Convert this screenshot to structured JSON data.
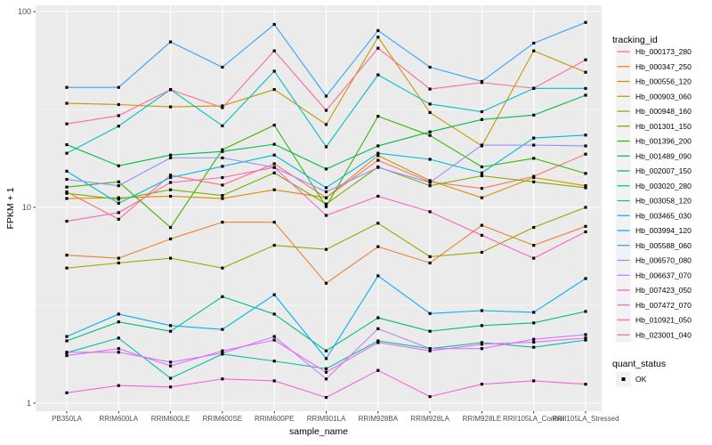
{
  "figure": {
    "background": "#FFFFFF",
    "panel_background": "#EBEBEB",
    "gridline_color": "#FFFFFF",
    "legend_key_background": "#F2F2F2",
    "axis_text_color": "#4D4D4D",
    "title_text_color": "#000000",
    "marker_color": "#000000"
  },
  "chart_data": {
    "type": "line",
    "title": "",
    "xlabel": "sample_name",
    "ylabel": "FPKM + 1",
    "y_scale": "log10",
    "ylim": [
      1,
      100
    ],
    "y_major_ticks": [
      1,
      10,
      100
    ],
    "y_tick_labels": [
      "1",
      "10",
      "100"
    ],
    "y_minor_ticks": [
      3.1623,
      31.623
    ],
    "grid": true,
    "legend_position": "right",
    "point_shape": "filled-square",
    "categories": [
      "PB350LA",
      "RRIM600LA",
      "RRIM600LE",
      "RRIM600SE",
      "RRIM600PE",
      "RRIM901LA",
      "RRIM928BA",
      "RRIM928LA",
      "RRIM928LE",
      "RRII105LA_Control",
      "RRII105LA_Stressed"
    ],
    "series": [
      {
        "name": "Hb_000173_280",
        "color": "#F8766D",
        "values": [
          12.0,
          8.7,
          14.6,
          13.0,
          16.7,
          11.2,
          17.4,
          13.5,
          12.5,
          14.4,
          18.7
        ]
      },
      {
        "name": "Hb_000347_250",
        "color": "#EA8331",
        "values": [
          5.7,
          5.5,
          6.9,
          8.4,
          8.4,
          4.1,
          6.3,
          5.2,
          8.1,
          6.4,
          8.0
        ]
      },
      {
        "name": "Hb_000556_120",
        "color": "#D89000",
        "values": [
          11.1,
          11.2,
          11.4,
          11.1,
          12.3,
          11.2,
          18.4,
          13.7,
          11.2,
          14.2,
          12.9
        ]
      },
      {
        "name": "Hb_000903_060",
        "color": "#C09B00",
        "values": [
          34.0,
          33.5,
          32.6,
          33.0,
          40.0,
          26.5,
          74.0,
          30.5,
          20.6,
          63.0,
          49.0
        ]
      },
      {
        "name": "Hb_000948_160",
        "color": "#A3A500",
        "values": [
          4.9,
          5.2,
          5.5,
          4.9,
          6.4,
          6.1,
          8.3,
          5.6,
          5.9,
          7.9,
          10.0
        ]
      },
      {
        "name": "Hb_001301_150",
        "color": "#7CAE00",
        "values": [
          11.8,
          11.0,
          12.3,
          11.5,
          15.0,
          10.4,
          16.1,
          12.9,
          14.5,
          13.5,
          12.6
        ]
      },
      {
        "name": "Hb_001396_200",
        "color": "#39B600",
        "values": [
          12.7,
          13.5,
          7.9,
          19.7,
          26.3,
          10.1,
          29.2,
          23.3,
          16.1,
          17.8,
          14.9
        ]
      },
      {
        "name": "Hb_001489_090",
        "color": "#00BB4E",
        "values": [
          20.9,
          16.3,
          18.5,
          19.3,
          21.0,
          15.7,
          20.6,
          24.3,
          28.1,
          29.6,
          37.4
        ]
      },
      {
        "name": "Hb_002007_150",
        "color": "#00BF7D",
        "values": [
          2.08,
          2.6,
          2.33,
          3.5,
          2.85,
          1.85,
          2.73,
          2.33,
          2.49,
          2.57,
          2.94
        ]
      },
      {
        "name": "Hb_003020_280",
        "color": "#00C1A3",
        "values": [
          1.81,
          2.15,
          1.34,
          1.78,
          1.64,
          1.5,
          2.08,
          1.9,
          2.04,
          1.93,
          2.1
        ]
      },
      {
        "name": "Hb_003058_120",
        "color": "#00BFC4",
        "values": [
          18.9,
          26.0,
          40.0,
          26.1,
          49.6,
          20.4,
          47.5,
          33.7,
          30.8,
          40.5,
          40.5
        ]
      },
      {
        "name": "Hb_003465_030",
        "color": "#00BAE0",
        "values": [
          15.3,
          10.5,
          14.2,
          16.2,
          18.5,
          12.6,
          18.9,
          17.6,
          15.0,
          22.6,
          23.4
        ]
      },
      {
        "name": "Hb_003994_120",
        "color": "#00B0F6",
        "values": [
          2.19,
          2.85,
          2.49,
          2.38,
          3.58,
          1.69,
          4.47,
          2.87,
          2.97,
          2.91,
          4.33
        ]
      },
      {
        "name": "Hb_005588_060",
        "color": "#35A2FF",
        "values": [
          41.0,
          41.0,
          70.0,
          52.0,
          86.0,
          37.0,
          80.0,
          52.0,
          44.0,
          69.0,
          88.0
        ]
      },
      {
        "name": "Hb_006570_080",
        "color": "#9590FF",
        "values": [
          13.9,
          12.9,
          17.9,
          17.9,
          16.0,
          12.0,
          16.0,
          13.4,
          20.8,
          20.8,
          20.6
        ]
      },
      {
        "name": "Hb_006637_070",
        "color": "#C77CFF",
        "values": [
          1.82,
          1.82,
          1.62,
          1.8,
          2.19,
          1.33,
          2.4,
          1.9,
          1.9,
          2.12,
          2.24
        ]
      },
      {
        "name": "Hb_007423_050",
        "color": "#E76BF3",
        "values": [
          1.75,
          1.9,
          1.55,
          1.85,
          2.1,
          1.44,
          2.04,
          1.85,
          2.0,
          2.05,
          2.15
        ]
      },
      {
        "name": "Hb_007472_070",
        "color": "#FA62DB",
        "values": [
          1.13,
          1.23,
          1.21,
          1.33,
          1.3,
          1.07,
          1.47,
          1.08,
          1.25,
          1.3,
          1.25
        ]
      },
      {
        "name": "Hb_010921_050",
        "color": "#FF62BC",
        "values": [
          8.5,
          9.4,
          13.4,
          14.2,
          16.0,
          9.1,
          11.4,
          9.5,
          7.2,
          5.5,
          7.5
        ]
      },
      {
        "name": "Hb_023001_040",
        "color": "#FF6A98",
        "values": [
          26.7,
          29.4,
          39.9,
          32.3,
          63.0,
          31.3,
          65.0,
          40.2,
          43.4,
          40.6,
          56.7
        ]
      }
    ],
    "legend": {
      "series_title": "tracking_id",
      "marker_title": "quant_status",
      "marker_items": [
        {
          "label": "OK",
          "shape": "filled-square",
          "color": "#000000"
        }
      ]
    }
  }
}
